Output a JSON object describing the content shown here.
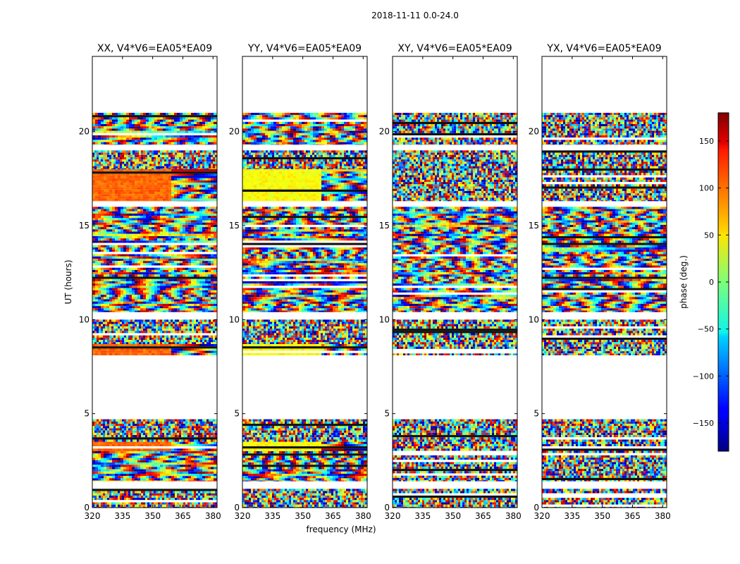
{
  "figure": {
    "suptitle": "2018-11-11 0.0-24.0",
    "xlabel": "frequency (MHz)",
    "ylabel": "UT (hours)",
    "colorbar_label": "phase (deg.)",
    "colorbar_ticks": [
      "150",
      "100",
      "50",
      "0",
      "−50",
      "−100",
      "−150"
    ]
  },
  "chart_data": [
    {
      "type": "heatmap",
      "title": "XX, V4*V6=EA05*EA09",
      "xlabel": "frequency (MHz)",
      "ylabel": "UT (hours)",
      "xlim": [
        320,
        382
      ],
      "ylim": [
        0,
        24
      ],
      "xticks": [
        320,
        335,
        350,
        365,
        380
      ],
      "yticks": [
        0,
        5,
        10,
        15,
        20
      ],
      "xtick_labels": [
        "320",
        "335",
        "350",
        "365",
        "380"
      ],
      "ytick_labels": [
        "0",
        "5",
        "10",
        "15",
        "20"
      ],
      "colorbar": {
        "label": "phase (deg.)",
        "range": [
          -180,
          180
        ],
        "colormap": "jet"
      },
      "data_blocks": [
        {
          "ut_start": 0.0,
          "ut_end": 1.0,
          "character": "noisy"
        },
        {
          "ut_start": 1.4,
          "ut_end": 3.0,
          "character": "fringes"
        },
        {
          "ut_start": 3.0,
          "ut_end": 3.5,
          "character": "flat",
          "phase_deg": 100
        },
        {
          "ut_start": 3.5,
          "ut_end": 4.7,
          "character": "noisy"
        },
        {
          "ut_start": 8.1,
          "ut_end": 8.7,
          "character": "flat",
          "phase_deg": 100
        },
        {
          "ut_start": 8.7,
          "ut_end": 10.0,
          "character": "noisy"
        },
        {
          "ut_start": 10.4,
          "ut_end": 16.0,
          "character": "fringes"
        },
        {
          "ut_start": 16.3,
          "ut_end": 18.0,
          "character": "flat",
          "phase_deg": 100
        },
        {
          "ut_start": 18.0,
          "ut_end": 19.0,
          "character": "noisy"
        },
        {
          "ut_start": 19.3,
          "ut_end": 21.0,
          "character": "fringes"
        }
      ]
    },
    {
      "type": "heatmap",
      "title": "YY, V4*V6=EA05*EA09",
      "xlabel": "frequency (MHz)",
      "ylabel": "UT (hours)",
      "xlim": [
        320,
        382
      ],
      "ylim": [
        0,
        24
      ],
      "xticks": [
        320,
        335,
        350,
        365,
        380
      ],
      "yticks": [
        0,
        5,
        10,
        15,
        20
      ],
      "xtick_labels": [
        "320",
        "335",
        "350",
        "365",
        "380"
      ],
      "ytick_labels": [
        "0",
        "5",
        "10",
        "15",
        "20"
      ],
      "colorbar": {
        "label": "phase (deg.)",
        "range": [
          -180,
          180
        ],
        "colormap": "jet"
      },
      "data_blocks": [
        {
          "ut_start": 0.0,
          "ut_end": 1.0,
          "character": "noisy"
        },
        {
          "ut_start": 1.4,
          "ut_end": 3.0,
          "character": "fringes"
        },
        {
          "ut_start": 3.0,
          "ut_end": 3.5,
          "character": "flat",
          "phase_deg": 45
        },
        {
          "ut_start": 3.5,
          "ut_end": 4.7,
          "character": "noisy"
        },
        {
          "ut_start": 8.1,
          "ut_end": 8.7,
          "character": "flat",
          "phase_deg": 45
        },
        {
          "ut_start": 8.7,
          "ut_end": 10.0,
          "character": "noisy"
        },
        {
          "ut_start": 10.4,
          "ut_end": 16.0,
          "character": "fringes"
        },
        {
          "ut_start": 16.3,
          "ut_end": 18.0,
          "character": "flat",
          "phase_deg": 45
        },
        {
          "ut_start": 18.0,
          "ut_end": 19.0,
          "character": "noisy"
        },
        {
          "ut_start": 19.3,
          "ut_end": 21.0,
          "character": "fringes"
        }
      ]
    },
    {
      "type": "heatmap",
      "title": "XY, V4*V6=EA05*EA09",
      "xlabel": "frequency (MHz)",
      "ylabel": "UT (hours)",
      "xlim": [
        320,
        382
      ],
      "ylim": [
        0,
        24
      ],
      "xticks": [
        320,
        335,
        350,
        365,
        380
      ],
      "yticks": [
        0,
        5,
        10,
        15,
        20
      ],
      "xtick_labels": [
        "320",
        "335",
        "350",
        "365",
        "380"
      ],
      "ytick_labels": [
        "0",
        "5",
        "10",
        "15",
        "20"
      ],
      "colorbar": {
        "label": "phase (deg.)",
        "range": [
          -180,
          180
        ],
        "colormap": "jet"
      },
      "data_blocks": [
        {
          "ut_start": 0.0,
          "ut_end": 1.0,
          "character": "noisy"
        },
        {
          "ut_start": 1.4,
          "ut_end": 4.7,
          "character": "noisy"
        },
        {
          "ut_start": 8.1,
          "ut_end": 10.0,
          "character": "noisy"
        },
        {
          "ut_start": 10.4,
          "ut_end": 16.0,
          "character": "fringes"
        },
        {
          "ut_start": 16.3,
          "ut_end": 19.0,
          "character": "noisy"
        },
        {
          "ut_start": 19.3,
          "ut_end": 21.0,
          "character": "noisy"
        }
      ]
    },
    {
      "type": "heatmap",
      "title": "YX, V4*V6=EA05*EA09",
      "xlabel": "frequency (MHz)",
      "ylabel": "UT (hours)",
      "xlim": [
        320,
        382
      ],
      "ylim": [
        0,
        24
      ],
      "xticks": [
        320,
        335,
        350,
        365,
        380
      ],
      "yticks": [
        0,
        5,
        10,
        15,
        20
      ],
      "xtick_labels": [
        "320",
        "335",
        "350",
        "365",
        "380"
      ],
      "ytick_labels": [
        "0",
        "5",
        "10",
        "15",
        "20"
      ],
      "colorbar": {
        "label": "phase (deg.)",
        "range": [
          -180,
          180
        ],
        "colormap": "jet"
      },
      "data_blocks": [
        {
          "ut_start": 0.0,
          "ut_end": 1.0,
          "character": "noisy"
        },
        {
          "ut_start": 1.4,
          "ut_end": 4.7,
          "character": "noisy"
        },
        {
          "ut_start": 8.1,
          "ut_end": 10.0,
          "character": "noisy"
        },
        {
          "ut_start": 10.4,
          "ut_end": 16.0,
          "character": "fringes"
        },
        {
          "ut_start": 16.3,
          "ut_end": 19.0,
          "character": "noisy"
        },
        {
          "ut_start": 19.3,
          "ut_end": 21.0,
          "character": "noisy"
        }
      ]
    }
  ]
}
